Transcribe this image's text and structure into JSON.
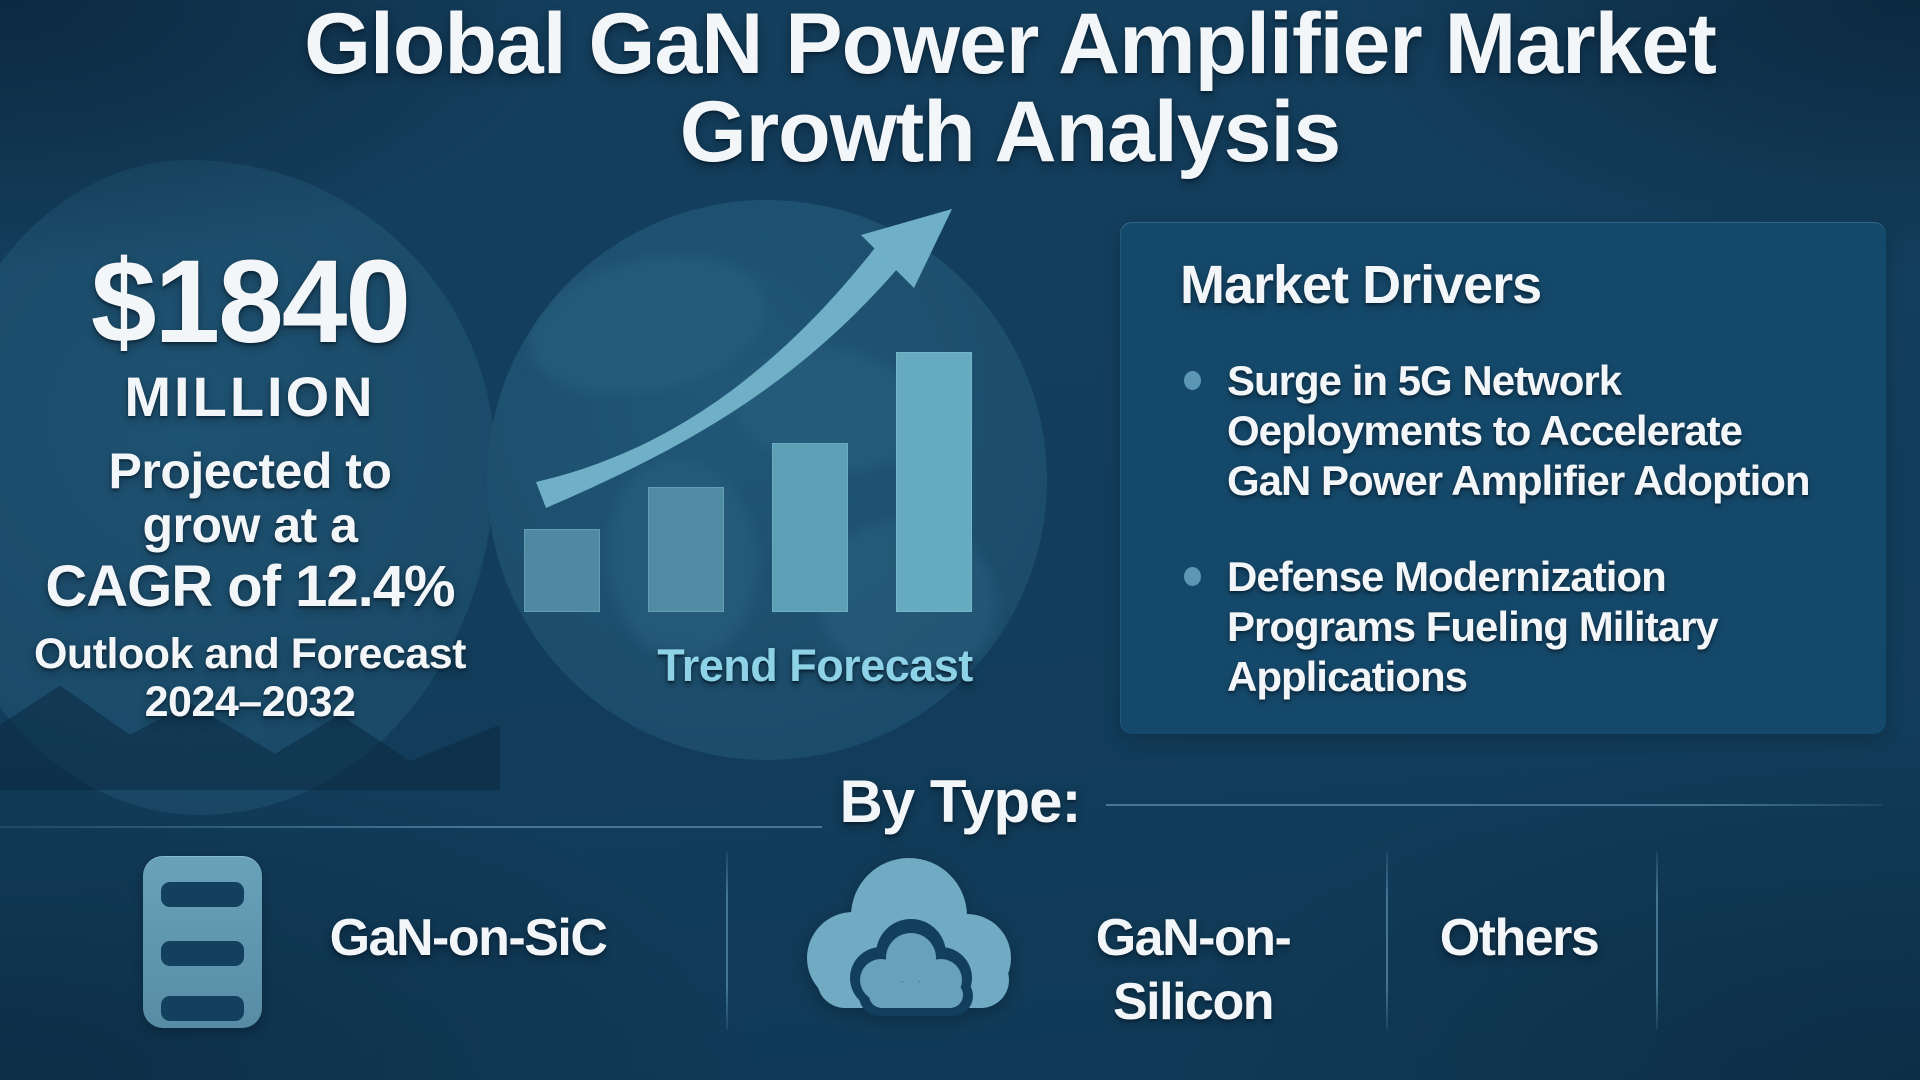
{
  "title": {
    "line1": "Global GaN Power Amplifier Market",
    "line2": "Growth Analysis"
  },
  "stat_block": {
    "value": "$1840",
    "unit": "MILLION",
    "growth_line1": "Projected to",
    "growth_line2": "grow at a",
    "cagr": "CAGR of 12.4%",
    "outlook_line1": "Outlook and Forecast",
    "outlook_line2": "2024–2032"
  },
  "chart_data": {
    "type": "bar",
    "title": "Trend Forecast",
    "categories": [
      "bar-1",
      "bar-2",
      "bar-3",
      "bar-4"
    ],
    "values": [
      32,
      48,
      65,
      100
    ],
    "ylabel": "",
    "xlabel": "",
    "unit": "relative height, % of tallest bar (decorative trend bars; no axes, gridlines or numeric labels shown)",
    "annotations": [
      "upward curved growth arrow over globe background"
    ],
    "grid": false,
    "legend": false
  },
  "market_drivers": {
    "heading": "Market Drivers",
    "bullets": [
      {
        "text": "Surge in 5G Network Oeployments to Accelerate GaN Power Amplifier Adoption",
        "lines": [
          "Surge in 5G Network",
          "Oeployments to Accelerate",
          "GaN Power Amplifier Adoption"
        ]
      },
      {
        "text": "Defense Modernization Programs Fueling Military Applications",
        "lines": [
          "Defense Modernization",
          "Programs Fueling Military",
          "Applications"
        ]
      }
    ]
  },
  "by_type": {
    "heading": "By Type:",
    "items": [
      {
        "icon": "server-icon",
        "label": "GaN-on-SiC"
      },
      {
        "icon": "cloud-icon",
        "label": "GaN-on-Silicon"
      },
      {
        "icon": null,
        "label": "Others"
      }
    ]
  },
  "colors": {
    "background": "#123e5b",
    "panel": "#15496b",
    "bars": [
      "#4f88a0",
      "#4f8ba3",
      "#5d9fb4",
      "#66abc0"
    ],
    "arrow": "#6fb0c7",
    "accent_text": "#8ed2e8",
    "text": "#f3f6f8",
    "bullet_dot": "#5b97b4",
    "server_icon": "#5d93ae",
    "cloud_icon": "#70aac3"
  }
}
